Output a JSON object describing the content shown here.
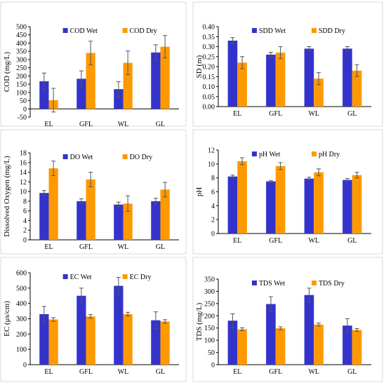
{
  "colors": {
    "wet": "#3333cc",
    "dry": "#ff9900",
    "panel_border": "#d9d9d9",
    "axis": "#000000"
  },
  "chart_data": [
    {
      "type": "bar",
      "ylabel": "COD (mg/L)",
      "categories": [
        "EL",
        "GFL",
        "WL",
        "GL"
      ],
      "ylim": [
        -50,
        500
      ],
      "ytick_step": 50,
      "legend_position": "top",
      "grid": false,
      "series": [
        {
          "name": "COD Wet",
          "values": [
            168,
            183,
            120,
            343
          ],
          "errors": [
            50,
            48,
            45,
            47
          ]
        },
        {
          "name": "COD Dry",
          "values": [
            53,
            340,
            280,
            378
          ],
          "errors": [
            72,
            72,
            72,
            68
          ]
        }
      ]
    },
    {
      "type": "bar",
      "ylabel": "SD (m)",
      "categories": [
        "EL",
        "GFL",
        "WL",
        "GL"
      ],
      "ylim": [
        0,
        0.4
      ],
      "ytick_step": 0.05,
      "legend_position": "top",
      "grid": false,
      "series": [
        {
          "name": "SDD Wet",
          "values": [
            0.33,
            0.26,
            0.29,
            0.29
          ],
          "errors": [
            0.015,
            0.012,
            0.01,
            0.01
          ]
        },
        {
          "name": "SDD Dry",
          "values": [
            0.22,
            0.27,
            0.14,
            0.18
          ],
          "errors": [
            0.03,
            0.03,
            0.03,
            0.03
          ]
        }
      ]
    },
    {
      "type": "bar",
      "ylabel": "Dissolved Oxygen (mg/L)",
      "categories": [
        "EL",
        "GFL",
        "WL",
        "GL"
      ],
      "ylim": [
        0,
        18
      ],
      "ytick_step": 2,
      "legend_position": "top",
      "grid": false,
      "series": [
        {
          "name": "DO Wet",
          "values": [
            9.7,
            8.0,
            7.3,
            8.0
          ],
          "errors": [
            0.5,
            0.5,
            0.5,
            0.6
          ]
        },
        {
          "name": "DO Dry",
          "values": [
            14.8,
            12.5,
            7.5,
            10.4
          ],
          "errors": [
            1.5,
            1.5,
            1.6,
            1.5
          ]
        }
      ]
    },
    {
      "type": "bar",
      "ylabel": "pH",
      "categories": [
        "EL",
        "GFL",
        "WL",
        "GL"
      ],
      "ylim": [
        0,
        12
      ],
      "ytick_step": 2,
      "legend_position": "top",
      "grid": false,
      "series": [
        {
          "name": "pH Wet",
          "values": [
            8.2,
            7.5,
            7.9,
            7.7
          ],
          "errors": [
            0.2,
            0.1,
            0.2,
            0.2
          ]
        },
        {
          "name": "pH Dry",
          "values": [
            10.4,
            9.7,
            8.8,
            8.4
          ],
          "errors": [
            0.5,
            0.5,
            0.5,
            0.4
          ]
        }
      ]
    },
    {
      "type": "bar",
      "ylabel": "EC (μs/cm)",
      "categories": [
        "EL",
        "GFL",
        "WL",
        "GL"
      ],
      "ylim": [
        0,
        600
      ],
      "ytick_step": 100,
      "legend_position": "top",
      "grid": false,
      "series": [
        {
          "name": "EC Wet",
          "values": [
            330,
            450,
            515,
            290
          ],
          "errors": [
            50,
            50,
            55,
            55
          ]
        },
        {
          "name": "EC Dry",
          "values": [
            295,
            315,
            330,
            282
          ],
          "errors": [
            12,
            12,
            12,
            12
          ]
        }
      ]
    },
    {
      "type": "bar",
      "ylabel": "TDS (mg/L)",
      "categories": [
        "EL",
        "GFL",
        "WL",
        "GL"
      ],
      "ylim": [
        0,
        350
      ],
      "ytick_step": 50,
      "legend_position": "top",
      "grid": false,
      "series": [
        {
          "name": "TDS Wet",
          "values": [
            180,
            248,
            285,
            160
          ],
          "errors": [
            28,
            30,
            28,
            28
          ]
        },
        {
          "name": "TDS Dry",
          "values": [
            145,
            149,
            164,
            142
          ],
          "errors": [
            6,
            6,
            6,
            6
          ]
        }
      ]
    }
  ]
}
